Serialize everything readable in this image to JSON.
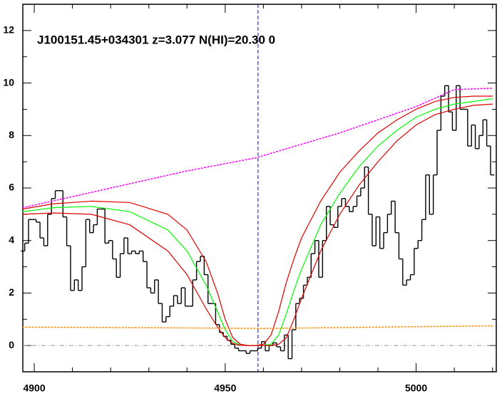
{
  "chart_data": {
    "type": "line",
    "annotation": "J100151.45+034301 z=3.077 N(HI)=20.30 0",
    "xlim": [
      4897,
      5021
    ],
    "ylim": [
      -1,
      13
    ],
    "xticks": [
      4900,
      4950,
      5000
    ],
    "yticks": [
      0,
      2,
      4,
      6,
      8,
      10,
      12
    ],
    "xminorticks": [
      4910,
      4920,
      4930,
      4940,
      4960,
      4970,
      4980,
      4990,
      5010,
      5020
    ],
    "yminorticks": [
      1,
      3,
      5,
      7,
      9,
      11
    ],
    "vline": {
      "x": 4958.6,
      "color": "#0000ff"
    },
    "hline": {
      "y": 0,
      "color": "#999999"
    },
    "series": [
      {
        "name": "flux",
        "style": "step",
        "color": "#000000",
        "x": [
          4897,
          4898,
          4899,
          4900,
          4901,
          4902,
          4903,
          4904,
          4905,
          4906,
          4907,
          4908,
          4909,
          4910,
          4911,
          4912,
          4913,
          4914,
          4915,
          4916,
          4917,
          4918,
          4919,
          4920,
          4921,
          4922,
          4923,
          4924,
          4925,
          4926,
          4927,
          4928,
          4929,
          4930,
          4931,
          4932,
          4933,
          4934,
          4935,
          4936,
          4937,
          4938,
          4939,
          4940,
          4941,
          4942,
          4943,
          4944,
          4945,
          4946,
          4947,
          4948,
          4949,
          4950,
          4951,
          4952,
          4953,
          4954,
          4955,
          4956,
          4957,
          4958,
          4959,
          4960,
          4961,
          4962,
          4963,
          4964,
          4965,
          4966,
          4967,
          4968,
          4969,
          4970,
          4971,
          4972,
          4973,
          4974,
          4975,
          4976,
          4977,
          4978,
          4979,
          4980,
          4981,
          4982,
          4983,
          4984,
          4985,
          4986,
          4987,
          4988,
          4989,
          4990,
          4991,
          4992,
          4993,
          4994,
          4995,
          4996,
          4997,
          4998,
          4999,
          5000,
          5001,
          5002,
          5003,
          5004,
          5005,
          5006,
          5007,
          5008,
          5009,
          5010,
          5011,
          5012,
          5013,
          5014,
          5015,
          5016,
          5017,
          5018,
          5019,
          5020
        ],
        "values": [
          3.6,
          3.9,
          4.8,
          4.8,
          4.7,
          4.1,
          3.8,
          5.0,
          5.6,
          5.9,
          5.9,
          4.9,
          3.8,
          2.1,
          2.5,
          2.1,
          3.0,
          4.8,
          4.3,
          4.6,
          5.2,
          5.2,
          3.9,
          4.0,
          3.3,
          2.6,
          3.5,
          4.1,
          3.5,
          3.6,
          3.5,
          3.6,
          3.2,
          2.2,
          2.0,
          2.5,
          1.6,
          0.9,
          1.1,
          1.5,
          1.9,
          1.6,
          2.2,
          1.5,
          1.5,
          2.5,
          3.2,
          3.4,
          2.7,
          1.6,
          1.6,
          0.8,
          0.5,
          0.35,
          0.2,
          0.05,
          -0.1,
          -0.2,
          -0.2,
          -0.3,
          -0.2,
          -0.2,
          -0.1,
          0.15,
          -0.2,
          0.0,
          0.1,
          -0.05,
          -0.2,
          0.4,
          -0.5,
          0.6,
          1.6,
          1.8,
          2.3,
          2.6,
          3.5,
          4.0,
          2.6,
          4.0,
          5.3,
          4.6,
          4.5,
          5.3,
          5.6,
          5.3,
          5.1,
          5.3,
          5.7,
          6.0,
          6.8,
          5.0,
          3.8,
          4.9,
          3.7,
          4.3,
          5.0,
          5.5,
          4.3,
          3.3,
          2.3,
          2.5,
          2.7,
          3.7,
          4.0,
          4.8,
          6.5,
          5.0,
          6.5,
          8.2,
          9.5,
          9.9,
          8.9,
          8.2,
          9.9,
          9.0,
          9.0,
          7.6,
          8.4,
          7.5,
          8.0,
          8.6,
          7.6,
          6.5
        ]
      },
      {
        "name": "model",
        "style": "solid",
        "color": "#00ff00",
        "x": [
          4897,
          4905,
          4915,
          4925,
          4935,
          4940,
          4945,
          4948,
          4950,
          4952,
          4954,
          4956,
          4958,
          4960,
          4962,
          4964,
          4966,
          4968,
          4970,
          4975,
          4980,
          4985,
          4990,
          4995,
          5000,
          5005,
          5010,
          5015,
          5020
        ],
        "values": [
          5.1,
          5.25,
          5.3,
          5.1,
          4.4,
          3.6,
          2.3,
          1.3,
          0.6,
          0.15,
          0.02,
          0,
          0,
          0,
          0.05,
          0.4,
          1.2,
          2.1,
          2.9,
          4.6,
          5.8,
          6.8,
          7.6,
          8.2,
          8.7,
          9.0,
          9.2,
          9.3,
          9.4
        ]
      },
      {
        "name": "model-upper",
        "style": "solid",
        "color": "#e00000",
        "x": [
          4897,
          4905,
          4915,
          4925,
          4935,
          4940,
          4945,
          4948,
          4950,
          4952,
          4954,
          4956,
          4958,
          4960,
          4962,
          4964,
          4966,
          4968,
          4970,
          4975,
          4980,
          4985,
          4990,
          4995,
          5000,
          5005,
          5010,
          5015,
          5020
        ],
        "values": [
          5.2,
          5.4,
          5.5,
          5.45,
          5.0,
          4.4,
          3.2,
          2.0,
          1.0,
          0.3,
          0.05,
          0,
          0,
          0.05,
          0.4,
          1.3,
          2.4,
          3.3,
          4.1,
          5.5,
          6.6,
          7.4,
          8.1,
          8.6,
          9.0,
          9.3,
          9.45,
          9.5,
          9.5
        ]
      },
      {
        "name": "model-lower",
        "style": "solid",
        "color": "#e00000",
        "x": [
          4897,
          4905,
          4915,
          4925,
          4935,
          4940,
          4945,
          4948,
          4950,
          4952,
          4954,
          4956,
          4958,
          4960,
          4962,
          4964,
          4966,
          4968,
          4970,
          4975,
          4980,
          4985,
          4990,
          4995,
          5000,
          5005,
          5010,
          5015,
          5020
        ],
        "values": [
          5.0,
          5.05,
          5.0,
          4.6,
          3.6,
          2.7,
          1.4,
          0.7,
          0.3,
          0.08,
          0.01,
          0,
          0,
          0,
          0,
          0.05,
          0.3,
          1.0,
          1.8,
          3.6,
          5.0,
          6.1,
          7.0,
          7.8,
          8.4,
          8.8,
          9.0,
          9.15,
          9.2
        ]
      },
      {
        "name": "continuum",
        "style": "dotted",
        "color": "#ff00ff",
        "x": [
          4897,
          4920,
          4940,
          4958,
          4980,
          5000,
          5010,
          5020
        ],
        "values": [
          5.25,
          6.0,
          6.65,
          7.15,
          8.1,
          9.1,
          9.75,
          9.8
        ]
      },
      {
        "name": "error",
        "style": "dotted",
        "color": "#ff8c00",
        "x": [
          4897,
          4930,
          4960,
          4990,
          5020
        ],
        "values": [
          0.7,
          0.68,
          0.65,
          0.7,
          0.75
        ]
      }
    ]
  }
}
